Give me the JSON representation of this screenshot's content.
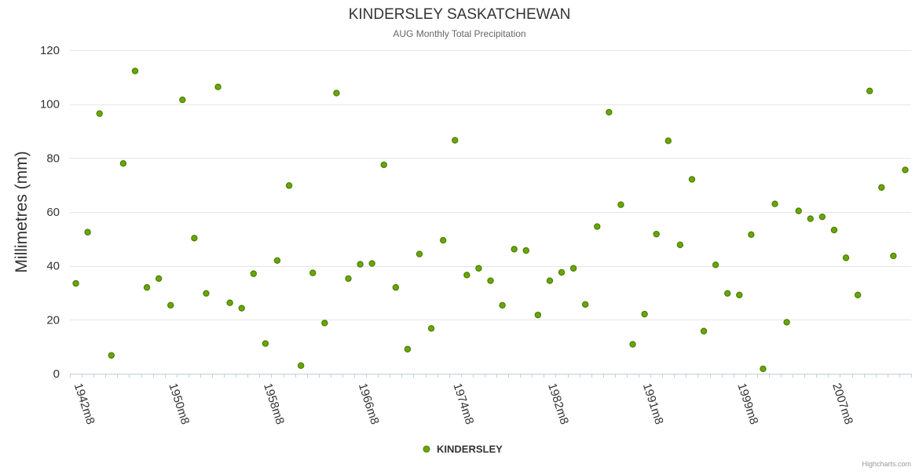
{
  "chart_data": {
    "type": "scatter",
    "title": "KINDERSLEY SASKATCHEWAN",
    "subtitle": "AUG Monthly Total Precipitation",
    "xlabel": "",
    "ylabel": "Millimetres (mm)",
    "ylim": [
      0,
      120
    ],
    "yticks": [
      0,
      20,
      40,
      60,
      80,
      100,
      120
    ],
    "x_tick_labels": [
      "1942m8",
      "1950m8",
      "1958m8",
      "1966m8",
      "1974m8",
      "1982m8",
      "1991m8",
      "1999m8",
      "2007m8"
    ],
    "x_tick_positions": [
      0,
      8,
      16,
      24,
      32,
      40,
      48,
      56,
      64
    ],
    "x_count": 71,
    "grid": true,
    "legend": "bottom-center",
    "series": [
      {
        "name": "KINDERSLEY",
        "color": "#6aa60a",
        "outline": "#4a7f00",
        "values": [
          33.5,
          52.5,
          96.5,
          6.8,
          78.0,
          112.3,
          32.0,
          35.3,
          25.4,
          101.6,
          50.3,
          29.8,
          106.4,
          26.3,
          24.3,
          37.1,
          11.2,
          42.0,
          69.8,
          3.0,
          37.4,
          18.8,
          104.1,
          35.3,
          40.6,
          40.9,
          77.5,
          32.0,
          9.1,
          44.4,
          16.8,
          49.5,
          86.6,
          36.6,
          39.1,
          34.5,
          25.4,
          46.2,
          45.7,
          21.8,
          34.5,
          37.6,
          39.1,
          25.7,
          54.6,
          97.0,
          62.7,
          10.9,
          22.1,
          51.8,
          86.4,
          47.8,
          72.1,
          15.8,
          40.4,
          29.8,
          29.2,
          51.6,
          1.8,
          63.0,
          19.1,
          60.4,
          57.5,
          58.2,
          53.3,
          43.0,
          29.2,
          104.9,
          69.1,
          43.7,
          75.6
        ]
      }
    ]
  },
  "legend": {
    "label": "KINDERSLEY"
  },
  "credits": {
    "text": "Highcharts.com"
  }
}
